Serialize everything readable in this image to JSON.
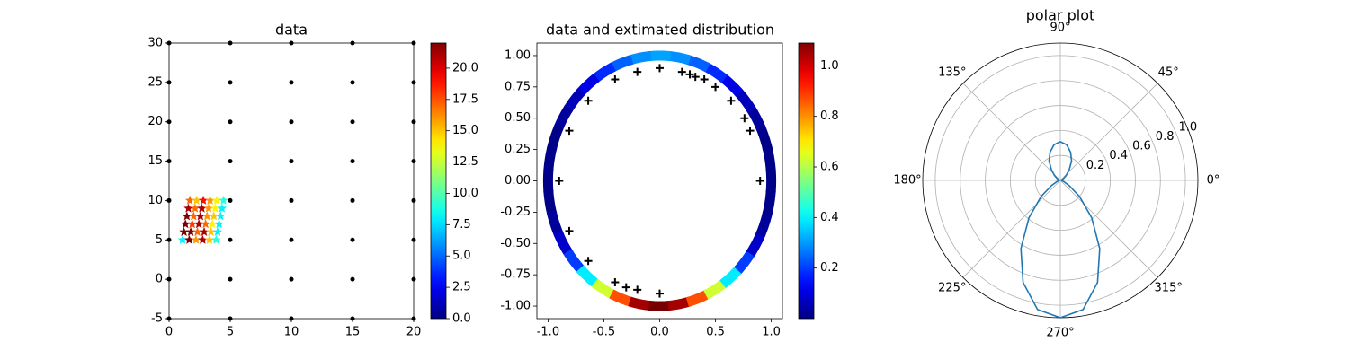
{
  "chart_data": [
    {
      "type": "scatter",
      "title": "data",
      "xlim": [
        0,
        20
      ],
      "ylim": [
        -5,
        30
      ],
      "xticks": [
        0,
        5,
        10,
        15,
        20
      ],
      "yticks": [
        -5,
        0,
        5,
        10,
        15,
        20,
        25,
        30
      ],
      "series": [
        {
          "color": "#000000",
          "marker": "dot",
          "x": [
            0,
            0,
            0,
            0,
            0,
            0,
            0,
            0,
            5,
            5,
            5,
            5,
            5,
            5,
            5,
            5,
            10,
            10,
            10,
            10,
            10,
            10,
            10,
            10,
            15,
            15,
            15,
            15,
            15,
            15,
            15,
            15,
            20,
            20,
            20,
            20,
            20,
            20,
            20,
            20
          ],
          "y": [
            -5,
            0,
            5,
            10,
            15,
            20,
            25,
            30,
            -5,
            0,
            5,
            10,
            15,
            20,
            25,
            30,
            -5,
            0,
            5,
            10,
            15,
            20,
            25,
            30,
            -5,
            0,
            5,
            10,
            15,
            20,
            25,
            30,
            -5,
            0,
            5,
            10,
            15,
            20,
            25,
            30
          ]
        },
        {
          "colormap": "jet",
          "marker": "star",
          "x": [
            1.1,
            1.65,
            2.2,
            2.75,
            3.3,
            3.85,
            1.22,
            1.77,
            2.32,
            2.87,
            3.42,
            3.97,
            1.34,
            1.89,
            2.44,
            2.99,
            3.54,
            4.09,
            1.46,
            2.01,
            2.56,
            3.11,
            3.66,
            4.21,
            1.58,
            2.13,
            2.68,
            3.23,
            3.78,
            4.33,
            1.7,
            2.25,
            2.8,
            3.35,
            3.9,
            4.45
          ],
          "y": [
            5,
            5,
            5,
            5,
            5,
            5,
            6,
            6,
            6,
            6,
            6,
            6,
            7,
            7,
            7,
            7,
            7,
            7,
            8,
            8,
            8,
            8,
            8,
            8,
            9,
            9,
            9,
            9,
            9,
            9,
            10,
            10,
            10,
            10,
            10,
            10
          ],
          "c": [
            8,
            22,
            16,
            21,
            15,
            9,
            22,
            22,
            17,
            21,
            15,
            8,
            22,
            18,
            21,
            17,
            14,
            8,
            22,
            17,
            21,
            16,
            15,
            8,
            21,
            17,
            21,
            16,
            14,
            8,
            17,
            15,
            19,
            16,
            14,
            9
          ]
        }
      ],
      "colorbar": {
        "colormap": "jet",
        "lim": [
          0,
          22
        ],
        "ticks": [
          {
            "value": 0,
            "label": "0.0"
          },
          2.5,
          {
            "value": 5,
            "label": "5.0"
          },
          7.5,
          {
            "value": 10,
            "label": "10.0"
          },
          12.5,
          {
            "value": 15,
            "label": "15.0"
          },
          17.5,
          {
            "value": 20,
            "label": "20.0"
          }
        ]
      }
    },
    {
      "type": "density",
      "title": "data and extimated distribution",
      "xlim": [
        -1.1,
        1.1
      ],
      "ylim": [
        -1.1,
        1.1
      ],
      "xticks": [
        {
          "value": -1,
          "label": "-1.0"
        },
        -0.5,
        {
          "value": 0,
          "label": "0.0"
        },
        0.5,
        {
          "value": 1,
          "label": "1.0"
        }
      ],
      "yticks": [
        {
          "value": -1,
          "label": "-1.00"
        },
        -0.75,
        {
          "value": -0.5,
          "label": "-0.50"
        },
        -0.25,
        {
          "value": 0,
          "label": "0.00"
        },
        0.25,
        {
          "value": 0.5,
          "label": "0.50"
        },
        0.75,
        {
          "value": 1,
          "label": "1.00"
        }
      ],
      "ring": {
        "colormap": "jet",
        "radius": 1,
        "theta": [
          0,
          10,
          20,
          30,
          40,
          50,
          60,
          70,
          80,
          90,
          100,
          110,
          120,
          130,
          140,
          150,
          160,
          170,
          180,
          190,
          200,
          210,
          220,
          230,
          240,
          250,
          260,
          270,
          280,
          290,
          300,
          310,
          320,
          330,
          340,
          350
        ],
        "values": [
          0.01,
          0.01,
          0.01,
          0.03,
          0.06,
          0.11,
          0.18,
          0.24,
          0.29,
          0.31,
          0.29,
          0.24,
          0.18,
          0.11,
          0.06,
          0.03,
          0.01,
          0.01,
          0.01,
          0.01,
          0.03,
          0.08,
          0.2,
          0.39,
          0.63,
          0.87,
          1.05,
          1.1,
          1.05,
          0.87,
          0.63,
          0.39,
          0.2,
          0.08,
          0.03,
          0.01
        ]
      },
      "series": [
        {
          "color": "#000000",
          "marker": "plus",
          "x": [
            0,
            0.9,
            0,
            -0.9,
            -0.4,
            -0.2,
            -0.64,
            -0.81,
            -0.81,
            -0.64,
            -0.4,
            -0.3,
            -0.2,
            0.2,
            0.27,
            0.32,
            0.4,
            0.5,
            0.64,
            0.76,
            0.81
          ],
          "y": [
            0.9,
            0,
            -0.9,
            0,
            0.81,
            0.87,
            0.64,
            0.4,
            -0.4,
            -0.64,
            -0.81,
            -0.85,
            -0.87,
            0.87,
            0.85,
            0.83,
            0.81,
            0.75,
            0.64,
            0.5,
            0.4
          ]
        }
      ],
      "colorbar": {
        "colormap": "jet",
        "lim": [
          0,
          1.09
        ],
        "ticks": [
          0.2,
          0.4,
          0.6,
          0.8,
          {
            "value": 1,
            "label": "1.0"
          }
        ]
      }
    },
    {
      "type": "polar",
      "title": "polar plot",
      "color": "#1f77b4",
      "grid": true,
      "theta": [
        0,
        10,
        20,
        30,
        40,
        50,
        60,
        70,
        80,
        90,
        100,
        110,
        120,
        130,
        140,
        150,
        160,
        170,
        180,
        190,
        200,
        210,
        220,
        230,
        240,
        250,
        260,
        270,
        280,
        290,
        300,
        310,
        320,
        330,
        340,
        350
      ],
      "r": [
        0.01,
        0.01,
        0.01,
        0.03,
        0.06,
        0.11,
        0.18,
        0.24,
        0.29,
        0.31,
        0.29,
        0.24,
        0.18,
        0.11,
        0.06,
        0.03,
        0.01,
        0.01,
        0.01,
        0.01,
        0.03,
        0.08,
        0.2,
        0.39,
        0.63,
        0.87,
        1.05,
        1.1,
        1.05,
        0.87,
        0.63,
        0.39,
        0.2,
        0.08,
        0.03,
        0.01
      ],
      "rlim": [
        0,
        1.1
      ],
      "rticks": [
        0.2,
        0.4,
        0.6,
        0.8,
        {
          "value": 1,
          "label": "1.0"
        }
      ],
      "thetaticks": [
        {
          "value": 0,
          "label": "0°"
        },
        {
          "value": 45,
          "label": "45°"
        },
        {
          "value": 90,
          "label": "90°"
        },
        {
          "value": 135,
          "label": "135°"
        },
        {
          "value": 180,
          "label": "180°"
        },
        {
          "value": 225,
          "label": "225°"
        },
        {
          "value": 270,
          "label": "270°"
        },
        {
          "value": 315,
          "label": "315°"
        }
      ]
    }
  ]
}
